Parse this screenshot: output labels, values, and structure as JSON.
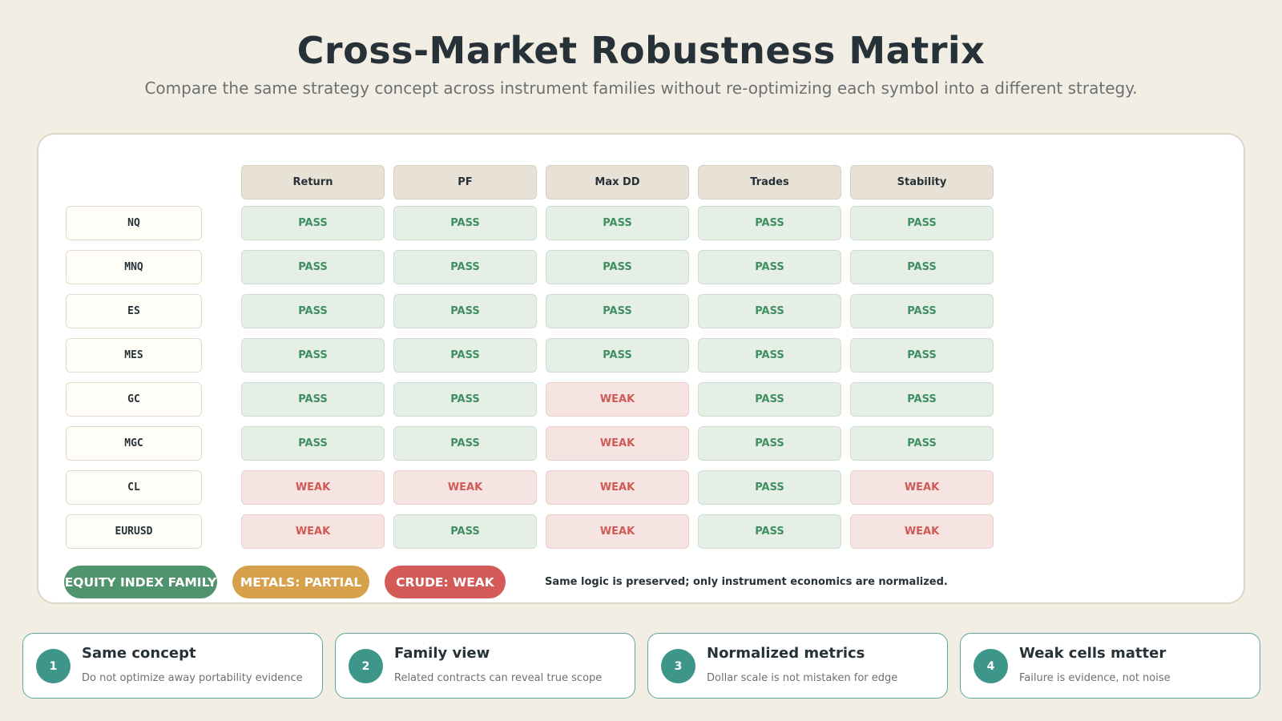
{
  "header": {
    "title": "Cross-Market Robustness Matrix",
    "subtitle": "Compare the same strategy concept across instrument families without re-optimizing each symbol into a different strategy."
  },
  "matrix": {
    "columns": [
      "Return",
      "PF",
      "Max DD",
      "Trades",
      "Stability"
    ],
    "rows": [
      {
        "symbol": "NQ",
        "cells": [
          "PASS",
          "PASS",
          "PASS",
          "PASS",
          "PASS"
        ]
      },
      {
        "symbol": "MNQ",
        "cells": [
          "PASS",
          "PASS",
          "PASS",
          "PASS",
          "PASS"
        ]
      },
      {
        "symbol": "ES",
        "cells": [
          "PASS",
          "PASS",
          "PASS",
          "PASS",
          "PASS"
        ]
      },
      {
        "symbol": "MES",
        "cells": [
          "PASS",
          "PASS",
          "PASS",
          "PASS",
          "PASS"
        ]
      },
      {
        "symbol": "GC",
        "cells": [
          "PASS",
          "PASS",
          "WEAK",
          "PASS",
          "PASS"
        ]
      },
      {
        "symbol": "MGC",
        "cells": [
          "PASS",
          "PASS",
          "WEAK",
          "PASS",
          "PASS"
        ]
      },
      {
        "symbol": "CL",
        "cells": [
          "WEAK",
          "WEAK",
          "WEAK",
          "PASS",
          "WEAK"
        ]
      },
      {
        "symbol": "EURUSD",
        "cells": [
          "WEAK",
          "PASS",
          "WEAK",
          "PASS",
          "WEAK"
        ]
      }
    ]
  },
  "legend": {
    "pills": [
      {
        "label": "EQUITY INDEX FAMILY",
        "color": "#4f946c"
      },
      {
        "label": "METALS: PARTIAL",
        "color": "#d6a14a"
      },
      {
        "label": "CRUDE: WEAK",
        "color": "#d45a58"
      }
    ],
    "note": "Same logic is preserved; only instrument economics are normalized."
  },
  "cards": [
    {
      "number": "1",
      "title": "Same concept",
      "desc": "Do not optimize away portability evidence"
    },
    {
      "number": "2",
      "title": "Family view",
      "desc": "Related contracts can reveal true scope"
    },
    {
      "number": "3",
      "title": "Normalized metrics",
      "desc": "Dollar scale is not mistaken for edge"
    },
    {
      "number": "4",
      "title": "Weak cells matter",
      "desc": "Failure is evidence, not noise"
    }
  ],
  "colors": {
    "pass_text": "#3f8f62",
    "pass_bg": "#e6efe5",
    "weak_text": "#d05a56",
    "weak_bg": "#f5e4e1",
    "accent": "#3d9689"
  }
}
